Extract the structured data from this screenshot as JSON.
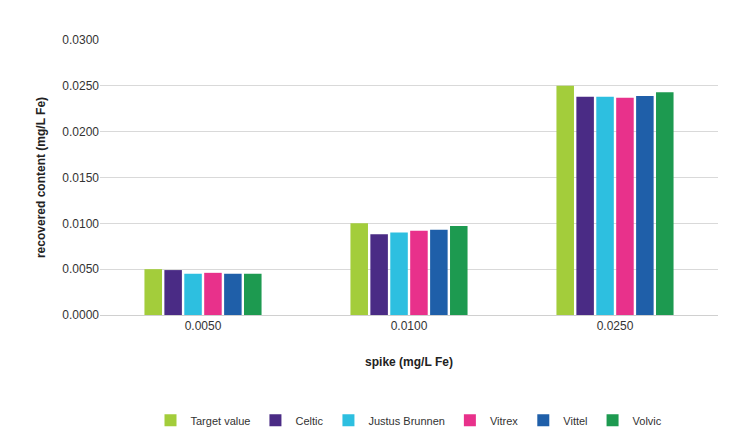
{
  "chart_data": {
    "type": "bar",
    "x_label": "spike (mg/L Fe)",
    "y_label": "recovered content (mg/L Fe)",
    "categories": [
      "0.0050",
      "0.0100",
      "0.0250"
    ],
    "series": [
      {
        "name": "Target value",
        "color": "#a3cd3b",
        "values": [
          0.005,
          0.01,
          0.025
        ]
      },
      {
        "name": "Celtic",
        "color": "#4a2b85",
        "values": [
          0.0049,
          0.0088,
          0.0238
        ]
      },
      {
        "name": "Justus Brunnen",
        "color": "#2dbfe0",
        "values": [
          0.0045,
          0.009,
          0.0238
        ]
      },
      {
        "name": "Vitrex",
        "color": "#e8318b",
        "values": [
          0.0046,
          0.0092,
          0.0237
        ]
      },
      {
        "name": "Vittel",
        "color": "#1f5fa9",
        "values": [
          0.0045,
          0.0093,
          0.0239
        ]
      },
      {
        "name": "Volvic",
        "color": "#1d9a50",
        "values": [
          0.0045,
          0.0097,
          0.0243
        ]
      }
    ],
    "ylim": [
      0,
      0.03
    ],
    "yticks": [
      {
        "value": 0,
        "label": "0.0000"
      },
      {
        "value": 0.005,
        "label": "0.0050"
      },
      {
        "value": 0.01,
        "label": "0.0100"
      },
      {
        "value": 0.015,
        "label": "0.0150"
      },
      {
        "value": 0.02,
        "label": "0.0200"
      },
      {
        "value": 0.025,
        "label": "0.0250"
      },
      {
        "value": 0.03,
        "label": "0.0300"
      }
    ],
    "grid": true,
    "legend": "bottom"
  }
}
